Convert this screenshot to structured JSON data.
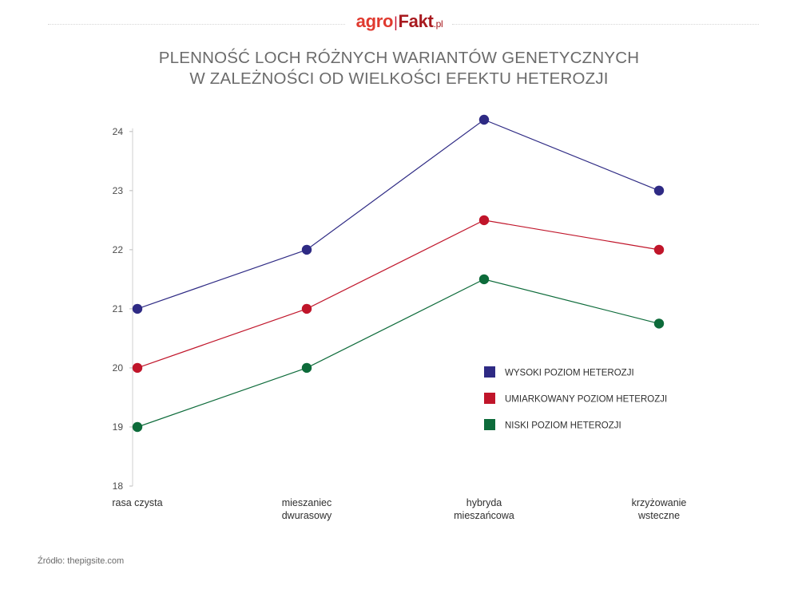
{
  "logo": {
    "agro": "agro",
    "fakt": "Fakt",
    "domain": ".pl",
    "agro_color": "#e03a2f",
    "fakt_color": "#a81a1f"
  },
  "title": {
    "line1": "PLENNOŚĆ LOCH RÓŻNYCH WARIANTÓW GENETYCZNYCH",
    "line2": "W ZALEŻNOŚCI OD WIELKOŚCI EFEKTU HETEROZJI"
  },
  "source": "Źródło: thepigsite.com",
  "chart_data": {
    "type": "line",
    "title": "PLENNOŚĆ LOCH RÓŻNYCH WARIANTÓW GENETYCZNYCH W ZALEŻNOŚCI OD WIELKOŚCI EFEKTU HETEROZJI",
    "categories": [
      [
        "rasa czysta"
      ],
      [
        "mieszaniec",
        "dwurasowy"
      ],
      [
        "hybryda",
        "mieszańcowa"
      ],
      [
        "krzyżowanie",
        "wsteczne"
      ]
    ],
    "yticks": [
      18,
      19,
      20,
      21,
      22,
      23,
      24
    ],
    "ylim": [
      18,
      24.2
    ],
    "xlabel": "",
    "ylabel": "",
    "grid": false,
    "legend_position": "right",
    "series": [
      {
        "name": "WYSOKI POZIOM HETEROZJI",
        "color": "#2e2a84",
        "values": [
          21,
          22,
          24.2,
          23
        ]
      },
      {
        "name": "UMIARKOWANY POZIOM HETEROZJI",
        "color": "#c0152a",
        "values": [
          20,
          21,
          22.5,
          22
        ]
      },
      {
        "name": "NISKI POZIOM HETEROZJI",
        "color": "#0d6b3a",
        "values": [
          19,
          20,
          21.5,
          20.75
        ]
      }
    ]
  }
}
